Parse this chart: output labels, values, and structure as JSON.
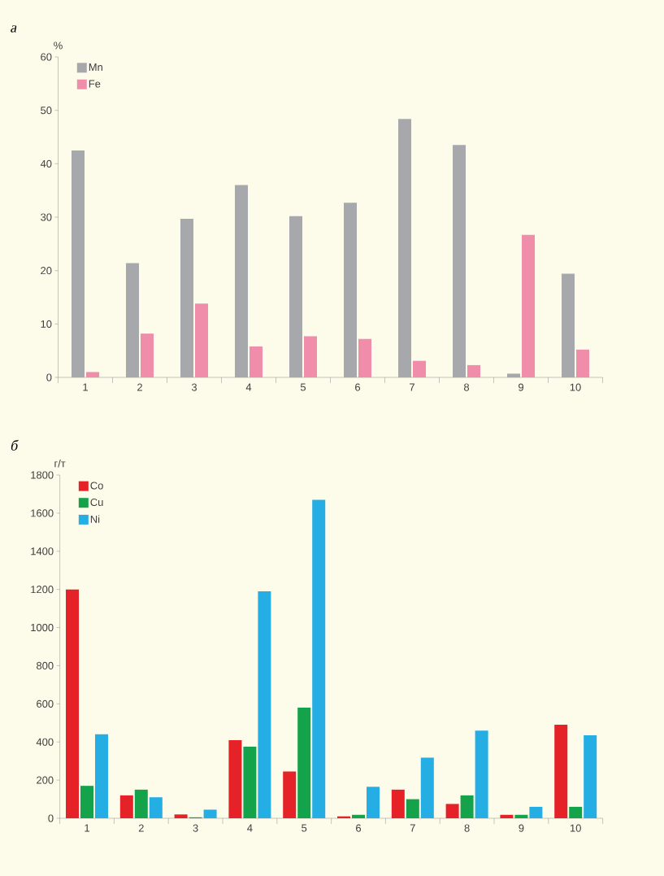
{
  "chart_data": [
    {
      "type": "bar",
      "title": "а",
      "ylabel": "%",
      "categories": [
        "1",
        "2",
        "3",
        "4",
        "5",
        "6",
        "7",
        "8",
        "9",
        "10"
      ],
      "series": [
        {
          "name": "Mn",
          "color": "#a7a8ac",
          "values": [
            42.5,
            21.4,
            29.7,
            36.0,
            30.2,
            32.7,
            48.4,
            43.5,
            0.7,
            19.4
          ]
        },
        {
          "name": "Fe",
          "color": "#f08daa",
          "values": [
            1.0,
            8.2,
            13.8,
            5.8,
            7.7,
            7.2,
            3.1,
            2.3,
            26.7,
            5.2
          ]
        }
      ],
      "ylim": [
        0,
        60
      ],
      "yticks": [
        0,
        10,
        20,
        30,
        40,
        50,
        60
      ],
      "legend": "top left"
    },
    {
      "type": "bar",
      "title": "б",
      "ylabel": "г/т",
      "categories": [
        "1",
        "2",
        "3",
        "4",
        "5",
        "6",
        "7",
        "8",
        "9",
        "10"
      ],
      "series": [
        {
          "name": "Co",
          "color": "#e42228",
          "values": [
            1200,
            120,
            20,
            410,
            245,
            10,
            150,
            75,
            18,
            490
          ]
        },
        {
          "name": "Cu",
          "color": "#14a34a",
          "values": [
            170,
            150,
            5,
            375,
            580,
            18,
            100,
            120,
            18,
            60
          ]
        },
        {
          "name": "Ni",
          "color": "#24aee3",
          "values": [
            440,
            110,
            45,
            1190,
            1670,
            165,
            318,
            460,
            60,
            435
          ]
        }
      ],
      "ylim": [
        0,
        1800
      ],
      "yticks": [
        0,
        200,
        400,
        600,
        800,
        1000,
        1200,
        1400,
        1600,
        1800
      ],
      "legend": "top left"
    }
  ]
}
